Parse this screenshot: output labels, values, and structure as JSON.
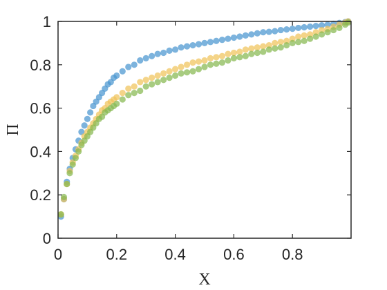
{
  "chart_data": {
    "type": "scatter",
    "title": "",
    "xlabel": "X",
    "ylabel": "Π",
    "xlim": [
      0,
      1
    ],
    "ylim": [
      0,
      1
    ],
    "x_ticks": [
      "0",
      "0.2",
      "0.4",
      "0.6",
      "0.8"
    ],
    "y_ticks": [
      "0",
      "0.2",
      "0.4",
      "0.6",
      "0.8",
      "1"
    ],
    "x_tick_values": [
      0,
      0.2,
      0.4,
      0.6,
      0.8
    ],
    "y_tick_values": [
      0,
      0.2,
      0.4,
      0.6,
      0.8,
      1
    ],
    "grid": false,
    "legend": "none",
    "series": [
      {
        "color": "#4A96D0",
        "x": [
          0.01,
          0.02,
          0.03,
          0.04,
          0.05,
          0.06,
          0.07,
          0.08,
          0.09,
          0.1,
          0.11,
          0.12,
          0.13,
          0.14,
          0.15,
          0.16,
          0.17,
          0.18,
          0.19,
          0.2,
          0.22,
          0.24,
          0.26,
          0.28,
          0.3,
          0.32,
          0.34,
          0.36,
          0.38,
          0.4,
          0.42,
          0.44,
          0.46,
          0.48,
          0.5,
          0.52,
          0.54,
          0.56,
          0.58,
          0.6,
          0.62,
          0.64,
          0.66,
          0.68,
          0.7,
          0.72,
          0.74,
          0.76,
          0.78,
          0.8,
          0.82,
          0.84,
          0.86,
          0.88,
          0.9,
          0.92,
          0.94,
          0.96,
          0.98,
          0.99
        ],
        "y": [
          0.1,
          0.18,
          0.26,
          0.32,
          0.37,
          0.41,
          0.45,
          0.49,
          0.52,
          0.55,
          0.58,
          0.61,
          0.63,
          0.65,
          0.67,
          0.69,
          0.71,
          0.72,
          0.74,
          0.75,
          0.77,
          0.79,
          0.8,
          0.82,
          0.83,
          0.84,
          0.85,
          0.855,
          0.865,
          0.87,
          0.88,
          0.885,
          0.89,
          0.895,
          0.9,
          0.905,
          0.91,
          0.915,
          0.92,
          0.925,
          0.93,
          0.935,
          0.94,
          0.945,
          0.95,
          0.952,
          0.955,
          0.96,
          0.963,
          0.966,
          0.97,
          0.973,
          0.976,
          0.979,
          0.982,
          0.985,
          0.989,
          0.993,
          0.997,
          1.0
        ]
      },
      {
        "color": "#F0C45A",
        "x": [
          0.01,
          0.02,
          0.03,
          0.04,
          0.05,
          0.06,
          0.07,
          0.08,
          0.09,
          0.1,
          0.11,
          0.12,
          0.13,
          0.14,
          0.15,
          0.16,
          0.17,
          0.18,
          0.19,
          0.2,
          0.22,
          0.24,
          0.26,
          0.28,
          0.3,
          0.32,
          0.34,
          0.36,
          0.38,
          0.4,
          0.42,
          0.44,
          0.46,
          0.48,
          0.5,
          0.52,
          0.54,
          0.56,
          0.58,
          0.6,
          0.62,
          0.64,
          0.66,
          0.68,
          0.7,
          0.72,
          0.74,
          0.76,
          0.78,
          0.8,
          0.82,
          0.84,
          0.86,
          0.88,
          0.9,
          0.92,
          0.94,
          0.96,
          0.98,
          0.99
        ],
        "y": [
          0.11,
          0.18,
          0.25,
          0.31,
          0.35,
          0.38,
          0.41,
          0.44,
          0.47,
          0.49,
          0.51,
          0.53,
          0.55,
          0.57,
          0.59,
          0.6,
          0.62,
          0.63,
          0.64,
          0.65,
          0.67,
          0.69,
          0.7,
          0.72,
          0.73,
          0.74,
          0.75,
          0.76,
          0.77,
          0.78,
          0.79,
          0.8,
          0.81,
          0.815,
          0.82,
          0.83,
          0.835,
          0.84,
          0.85,
          0.855,
          0.86,
          0.87,
          0.875,
          0.88,
          0.885,
          0.89,
          0.9,
          0.905,
          0.91,
          0.92,
          0.93,
          0.935,
          0.94,
          0.95,
          0.96,
          0.965,
          0.975,
          0.985,
          0.995,
          1.0
        ]
      },
      {
        "color": "#86B850",
        "x": [
          0.01,
          0.02,
          0.03,
          0.04,
          0.05,
          0.06,
          0.07,
          0.08,
          0.09,
          0.1,
          0.11,
          0.12,
          0.13,
          0.14,
          0.15,
          0.16,
          0.17,
          0.18,
          0.19,
          0.2,
          0.22,
          0.24,
          0.26,
          0.28,
          0.3,
          0.32,
          0.34,
          0.36,
          0.38,
          0.4,
          0.42,
          0.44,
          0.46,
          0.48,
          0.5,
          0.52,
          0.54,
          0.56,
          0.58,
          0.6,
          0.62,
          0.64,
          0.66,
          0.68,
          0.7,
          0.72,
          0.74,
          0.76,
          0.78,
          0.8,
          0.82,
          0.84,
          0.86,
          0.88,
          0.9,
          0.92,
          0.94,
          0.96,
          0.98,
          0.99
        ],
        "y": [
          0.11,
          0.19,
          0.25,
          0.3,
          0.34,
          0.37,
          0.4,
          0.43,
          0.45,
          0.47,
          0.49,
          0.51,
          0.53,
          0.55,
          0.56,
          0.58,
          0.59,
          0.6,
          0.61,
          0.62,
          0.64,
          0.66,
          0.67,
          0.68,
          0.7,
          0.71,
          0.72,
          0.73,
          0.74,
          0.75,
          0.76,
          0.765,
          0.77,
          0.78,
          0.79,
          0.8,
          0.805,
          0.81,
          0.82,
          0.83,
          0.835,
          0.84,
          0.85,
          0.855,
          0.86,
          0.87,
          0.875,
          0.88,
          0.89,
          0.9,
          0.905,
          0.91,
          0.92,
          0.93,
          0.94,
          0.95,
          0.96,
          0.97,
          0.985,
          0.995
        ]
      }
    ]
  }
}
